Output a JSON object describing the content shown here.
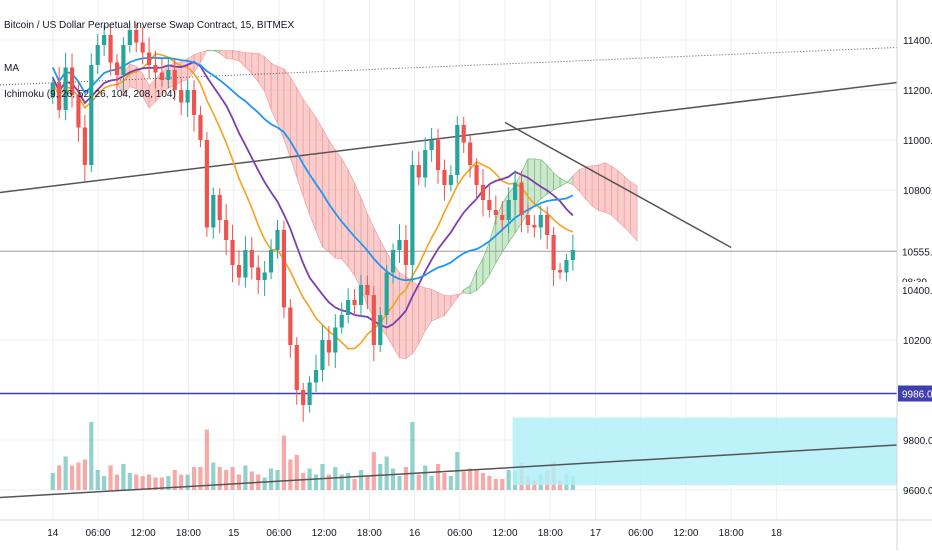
{
  "header": {
    "symbol_title": "Bitcoin / US Dollar Perpetual Inverse Swap Contract, 15, BITMEX",
    "indicator_ma": "MA",
    "indicator_ichimoku": "Ichimoku (9, 26, 52, 26, 104, 208, 104)"
  },
  "colors": {
    "up_candle": "#26a69a",
    "down_candle": "#ef5350",
    "ma_orange": "#f7a21b",
    "ma_purple": "#7b3fae",
    "ma_blue": "#2196f3",
    "cloud_red": "#f5a3a3",
    "cloud_green": "#a5d6a7",
    "support_line": "#3f3fb0",
    "highlight_box": "#b2f0f7",
    "trendline": "#555555"
  },
  "chart_data": {
    "type": "candlestick",
    "ylim": [
      9480,
      11560
    ],
    "y_ticks": [
      "11400.0",
      "11200.0",
      "11000.0",
      "10800.0",
      "10200.0",
      "9800.0",
      "9600.0"
    ],
    "x_ticks": [
      "14",
      "06:00",
      "12:00",
      "18:00",
      "15",
      "06:00",
      "12:00",
      "18:00",
      "16",
      "06:00",
      "12:00",
      "18:00",
      "17",
      "06:00",
      "12:00",
      "18:00",
      "18"
    ],
    "x_range_hours": [
      0,
      119
    ],
    "price_labels": {
      "current_price": "10555.0",
      "countdown": "08:39",
      "last_price_partial": "10400.0",
      "support_level": "9986.0"
    },
    "current_price": 10555,
    "support_level": 9986,
    "closes": [
      11230,
      11120,
      11290,
      11180,
      11050,
      10900,
      11300,
      11380,
      11420,
      11310,
      11260,
      11380,
      11440,
      11390,
      11350,
      11300,
      11270,
      11240,
      11280,
      11200,
      11150,
      11200,
      11100,
      11000,
      10650,
      10780,
      10680,
      10600,
      10500,
      10450,
      10560,
      10490,
      10440,
      10470,
      10560,
      10640,
      10330,
      10180,
      10000,
      9940,
      10030,
      10080,
      10200,
      10150,
      10250,
      10300,
      10360,
      10340,
      10420,
      10380,
      10180,
      10300,
      10470,
      10560,
      10600,
      10500,
      10900,
      10850,
      10960,
      11000,
      10880,
      10820,
      10860,
      11060,
      10990,
      10900,
      10820,
      10760,
      10720,
      10700,
      10680,
      10760,
      10830,
      10700,
      10660,
      10650,
      10700,
      10620,
      10480,
      10470,
      10520,
      10560
    ]
  }
}
